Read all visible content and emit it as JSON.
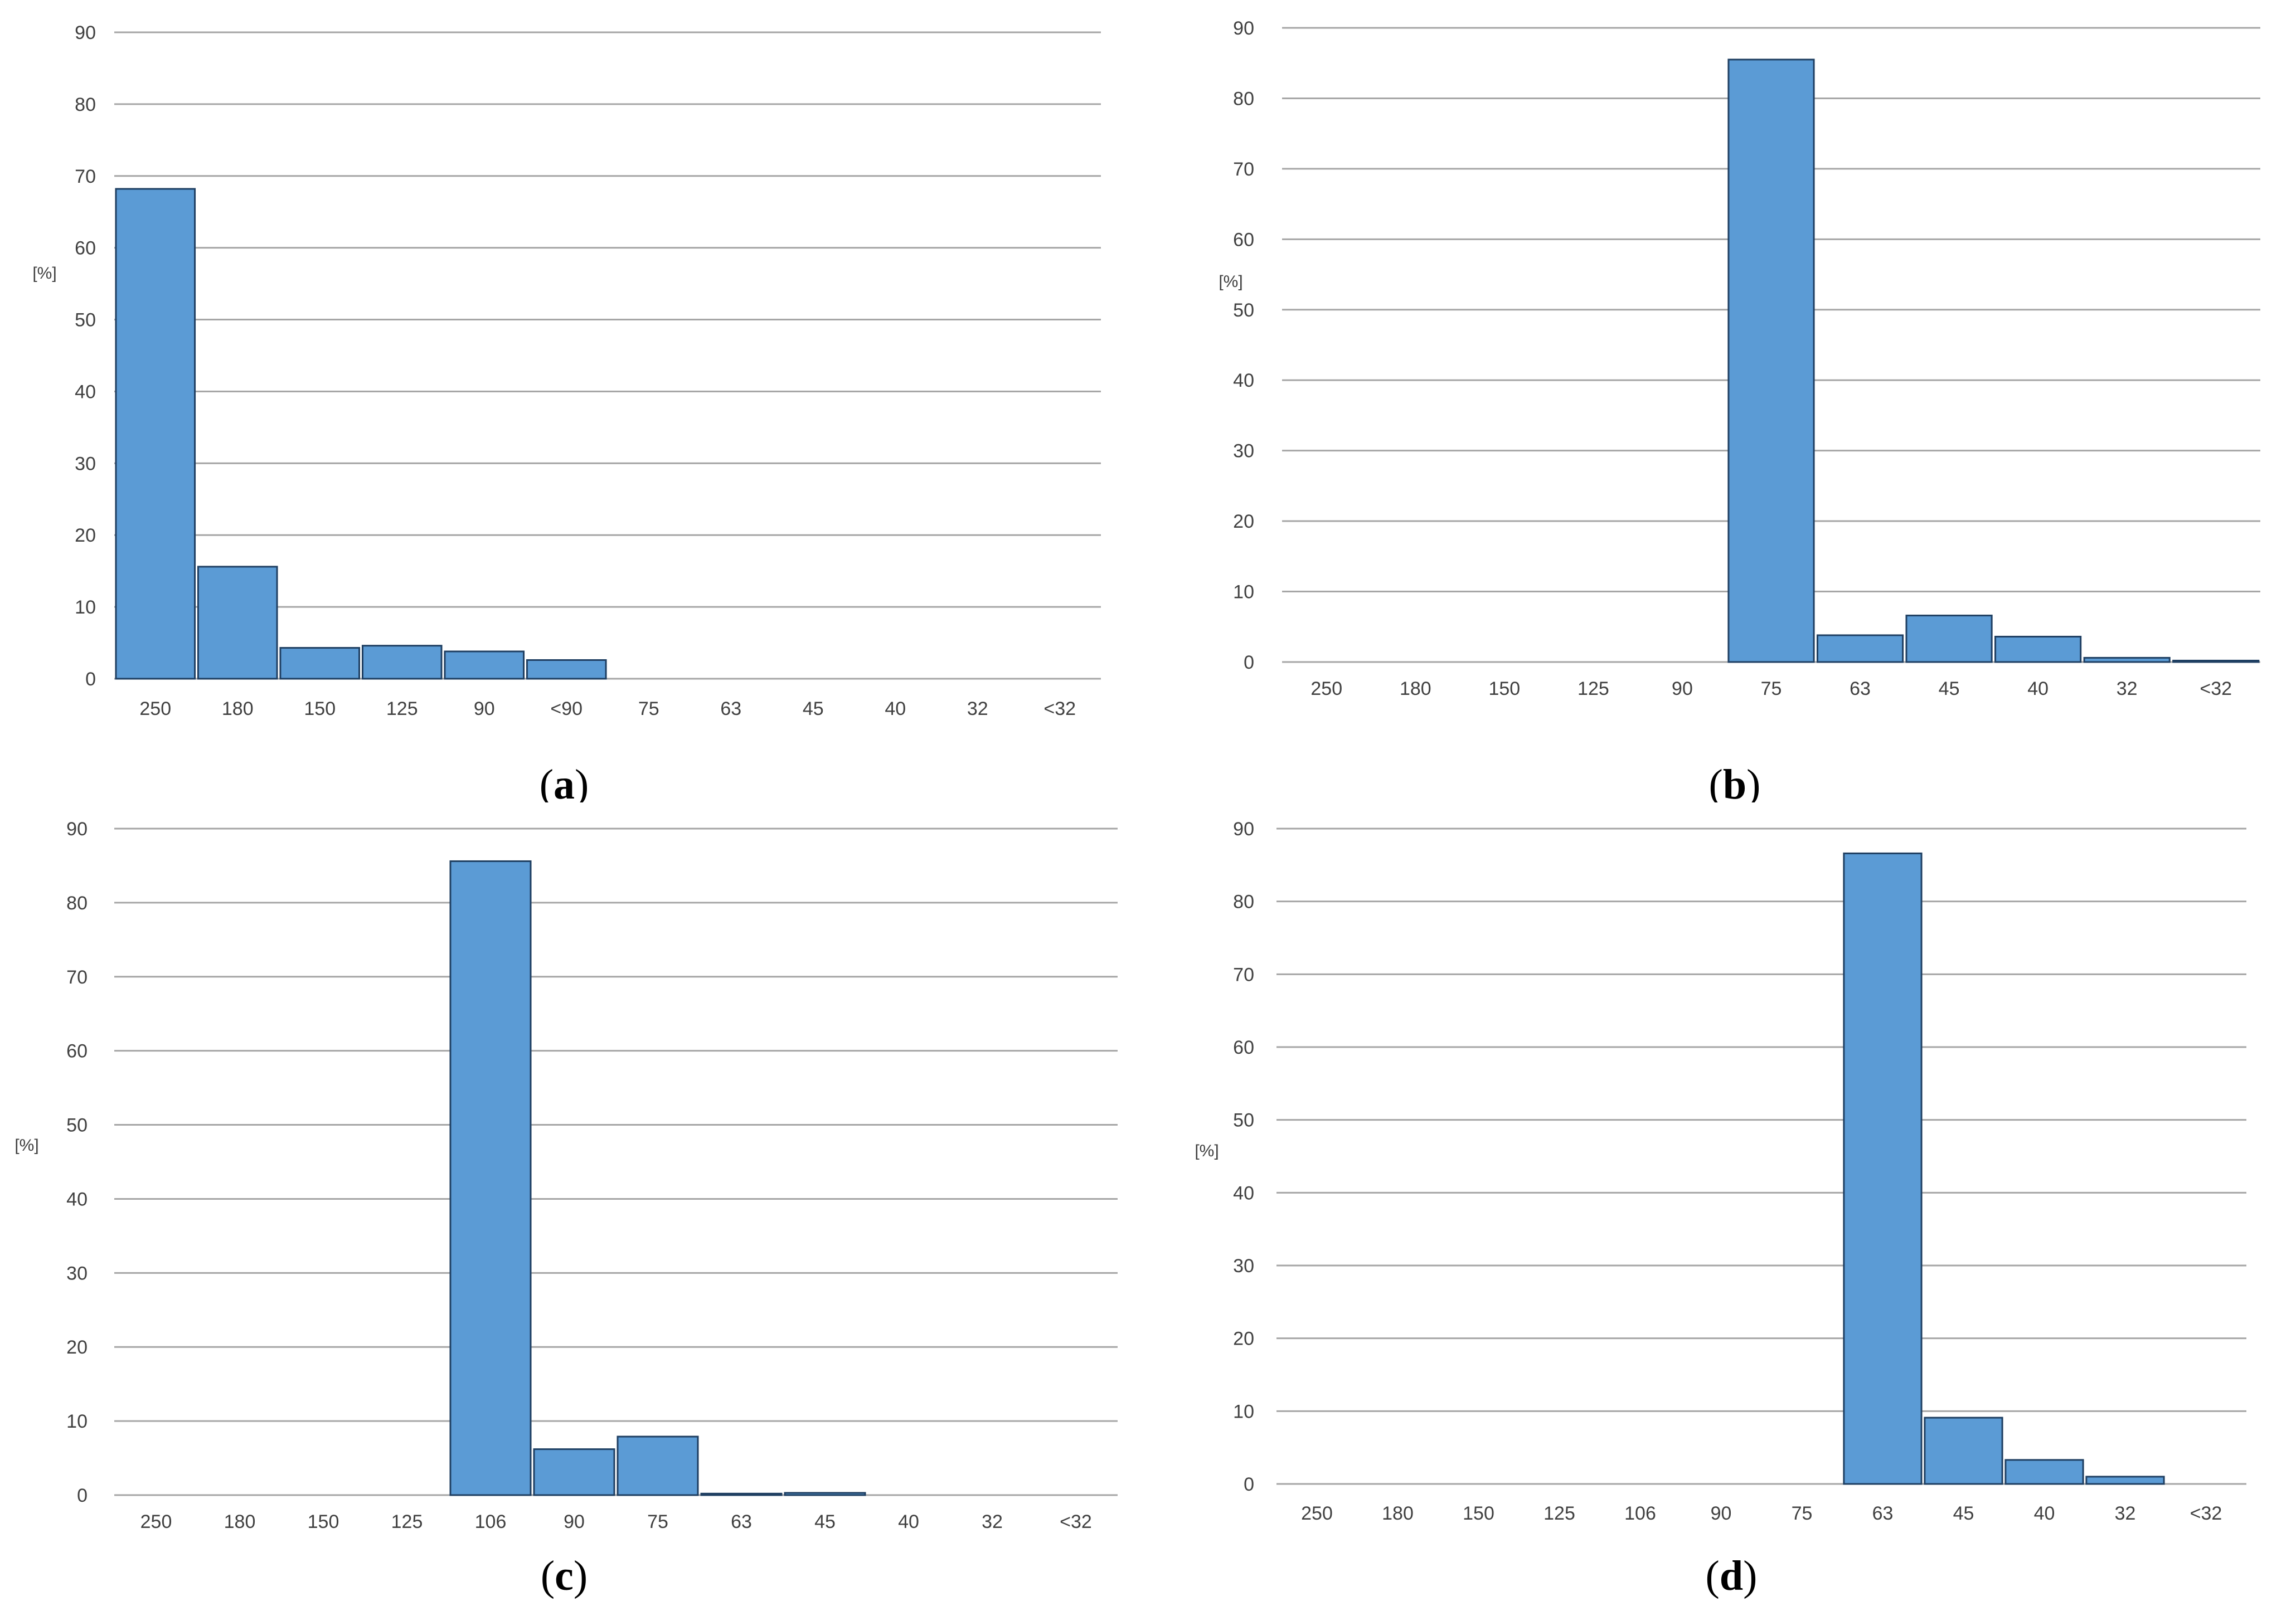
{
  "colors": {
    "bar_fill": "#5B9BD5",
    "bar_stroke": "#1F3F62",
    "grid": "#A6A6A6",
    "text": "#404040"
  },
  "chart_data": [
    {
      "panel": "a",
      "caption": {
        "open": "(",
        "letter": "a",
        "close": ")"
      },
      "type": "bar",
      "ylabel": "[%]",
      "ylim": [
        0,
        90
      ],
      "yticks": [
        0,
        10,
        20,
        30,
        40,
        50,
        60,
        70,
        80,
        90
      ],
      "grid": true,
      "categories": [
        "250",
        "180",
        "150",
        "125",
        "90",
        "<90",
        "75",
        "63",
        "45",
        "40",
        "32",
        "<32"
      ],
      "values": [
        68.2,
        15.6,
        4.3,
        4.6,
        3.8,
        2.6,
        0,
        0,
        0,
        0,
        0,
        0
      ]
    },
    {
      "panel": "b",
      "caption": {
        "open": "(",
        "letter": "b",
        "close": ")"
      },
      "type": "bar",
      "ylabel": "[%]",
      "ylim": [
        0,
        90
      ],
      "yticks": [
        0,
        10,
        20,
        30,
        40,
        50,
        60,
        70,
        80,
        90
      ],
      "grid": true,
      "categories": [
        "250",
        "180",
        "150",
        "125",
        "90",
        "75",
        "63",
        "45",
        "40",
        "32",
        "<32"
      ],
      "values": [
        0,
        0,
        0,
        0,
        0,
        85.5,
        3.8,
        6.6,
        3.6,
        0.6,
        0.2
      ]
    },
    {
      "panel": "c",
      "caption": {
        "open": "(",
        "letter": "c",
        "close": ")"
      },
      "type": "bar",
      "ylabel": "[%]",
      "ylim": [
        0,
        90
      ],
      "yticks": [
        0,
        10,
        20,
        30,
        40,
        50,
        60,
        70,
        80,
        90
      ],
      "grid": true,
      "categories": [
        "250",
        "180",
        "150",
        "125",
        "106",
        "90",
        "75",
        "63",
        "45",
        "40",
        "32",
        "<32"
      ],
      "values": [
        0,
        0,
        0,
        0,
        85.6,
        6.2,
        7.9,
        0.2,
        0.3,
        0,
        0,
        0
      ]
    },
    {
      "panel": "d",
      "caption": {
        "open": "(",
        "letter": "d",
        "close": ")"
      },
      "type": "bar",
      "ylabel": "[%]",
      "ylim": [
        0,
        90
      ],
      "yticks": [
        0,
        10,
        20,
        30,
        40,
        50,
        60,
        70,
        80,
        90
      ],
      "grid": true,
      "categories": [
        "250",
        "180",
        "150",
        "125",
        "106",
        "90",
        "75",
        "63",
        "45",
        "40",
        "32",
        "<32"
      ],
      "values": [
        0,
        0,
        0,
        0,
        0,
        0,
        0,
        86.6,
        9.1,
        3.3,
        1.0,
        0
      ]
    }
  ]
}
